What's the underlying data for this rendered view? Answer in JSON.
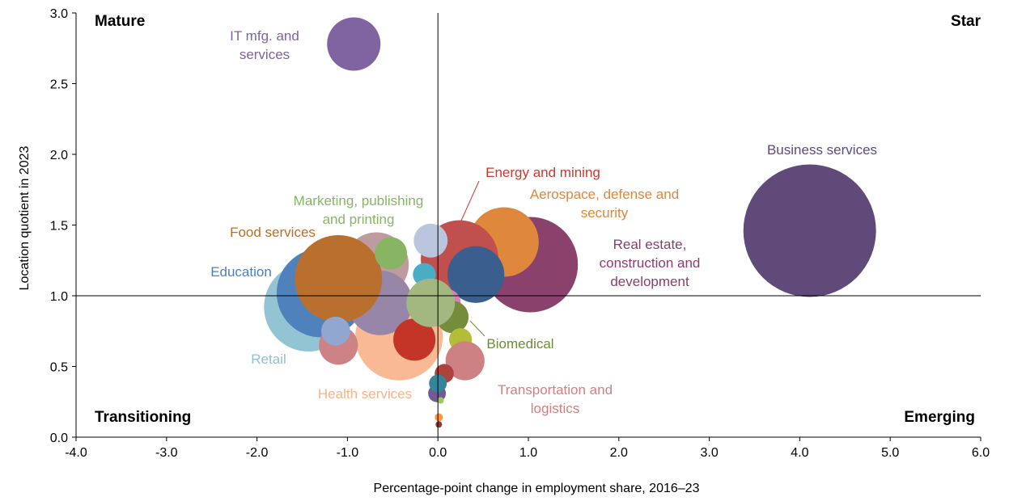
{
  "chart_data": {
    "type": "scatter",
    "subtype": "bubble",
    "xlabel": "Percentage-point change in employment share, 2016–23",
    "ylabel": "Location quotient in 2023",
    "xlim": [
      -4.0,
      6.0
    ],
    "ylim": [
      0.0,
      3.0
    ],
    "xticks": [
      "-4.0",
      "-3.0",
      "-2.0",
      "-1.0",
      "0.0",
      "1.0",
      "2.0",
      "3.0",
      "4.0",
      "5.0",
      "6.0"
    ],
    "yticks": [
      "0.0",
      "0.5",
      "1.0",
      "1.5",
      "2.0",
      "2.5",
      "3.0"
    ],
    "grid": false,
    "reference_lines": {
      "x": 0.0,
      "y": 1.0
    },
    "quadrants": {
      "top_left": "Mature",
      "top_right": "Star",
      "bottom_left": "Transitioning",
      "bottom_right": "Emerging"
    },
    "labels": {
      "it": [
        "IT mfg. and",
        "services"
      ],
      "business": [
        "Business services"
      ],
      "energy": [
        "Energy and mining"
      ],
      "aerospace": [
        "Aerospace, defense and",
        "security"
      ],
      "realestate": [
        "Real estate,",
        "construction and",
        "development"
      ],
      "marketing": [
        "Marketing, publishing",
        "and printing"
      ],
      "food": [
        "Food services"
      ],
      "education": [
        "Education"
      ],
      "retail": [
        "Retail"
      ],
      "health": [
        "Health services"
      ],
      "biomedical": [
        "Biomedical"
      ],
      "transport": [
        "Transportation and",
        "logistics"
      ]
    },
    "bubbles": [
      {
        "id": "business",
        "x": 4.11,
        "y": 1.46,
        "size": 67.2,
        "color": "#5f4a7a"
      },
      {
        "id": "realestate",
        "x": 1.02,
        "y": 1.22,
        "size": 34.8,
        "color": "#8a416c"
      },
      {
        "id": "aerospace",
        "x": 0.73,
        "y": 1.38,
        "size": 18.5,
        "color": "#df873a"
      },
      {
        "id": "energy",
        "x": 0.24,
        "y": 1.26,
        "size": 23.0,
        "color": "#c0504d"
      },
      {
        "id": "retail",
        "x": -1.43,
        "y": 0.92,
        "size": 30.3,
        "color": "#93c4d4"
      },
      {
        "id": "education",
        "x": -1.29,
        "y": 1.02,
        "size": 30.3,
        "color": "#4f81bd"
      },
      {
        "id": "rosegray",
        "x": -0.68,
        "y": 1.22,
        "size": 16.0,
        "color": "#bd9b9f"
      },
      {
        "id": "health",
        "x": -0.43,
        "y": 0.71,
        "size": 29.2,
        "color": "#f8b994"
      },
      {
        "id": "lavender",
        "x": -0.64,
        "y": 0.95,
        "size": 16.0,
        "color": "#9886a8"
      },
      {
        "id": "food",
        "x": -1.1,
        "y": 1.12,
        "size": 29.2,
        "color": "#b9702f"
      },
      {
        "id": "marketing",
        "x": -0.52,
        "y": 1.3,
        "size": 4.0,
        "color": "#87b563"
      },
      {
        "id": "coral",
        "x": -1.1,
        "y": 0.65,
        "size": 5.8,
        "color": "#cd8285"
      },
      {
        "id": "periwinkle",
        "x": -1.13,
        "y": 0.75,
        "size": 3.2,
        "color": "#92a7cf"
      },
      {
        "id": "red",
        "x": -0.26,
        "y": 0.69,
        "size": 6.8,
        "color": "#c33527"
      },
      {
        "id": "grayblue",
        "x": -0.08,
        "y": 1.39,
        "size": 4.4,
        "color": "#bac6de"
      },
      {
        "id": "darkblue",
        "x": 0.42,
        "y": 1.15,
        "size": 12.3,
        "color": "#3a5f8e"
      },
      {
        "id": "cyan",
        "x": -0.15,
        "y": 1.15,
        "size": 2.0,
        "color": "#4bacc6"
      },
      {
        "id": "pink",
        "x": 0.1,
        "y": 0.95,
        "size": 2.9,
        "color": "#d77fb8"
      },
      {
        "id": "biomedical",
        "x": 0.16,
        "y": 0.85,
        "size": 4.0,
        "color": "#748c3c"
      },
      {
        "id": "palegreen",
        "x": -0.08,
        "y": 0.95,
        "size": 9.0,
        "color": "#a3b880"
      },
      {
        "id": "yellowgreen",
        "x": 0.25,
        "y": 0.69,
        "size": 2.0,
        "color": "#b3bd35"
      },
      {
        "id": "transport",
        "x": 0.3,
        "y": 0.54,
        "size": 5.8,
        "color": "#cd8183"
      },
      {
        "id": "darkred",
        "x": 0.07,
        "y": 0.45,
        "size": 1.4,
        "color": "#b0423e"
      },
      {
        "id": "purple",
        "x": -0.01,
        "y": 0.31,
        "size": 1.2,
        "color": "#735a95"
      },
      {
        "id": "teal",
        "x": 0.0,
        "y": 0.38,
        "size": 1.2,
        "color": "#35849a"
      },
      {
        "id": "tinygreen",
        "x": 0.03,
        "y": 0.26,
        "size": 0.16,
        "color": "#9bcb5c"
      },
      {
        "id": "tinyorange",
        "x": 0.01,
        "y": 0.14,
        "size": 0.25,
        "color": "#f79646"
      },
      {
        "id": "tinybrown",
        "x": 0.01,
        "y": 0.09,
        "size": 0.16,
        "color": "#8b3a32"
      },
      {
        "id": "it",
        "x": -0.93,
        "y": 2.78,
        "size": 10.9,
        "color": "#8064a2"
      }
    ],
    "label_colors": {
      "it": "#7f63a0",
      "business": "#5e4a7a",
      "energy": "#c8392f",
      "aerospace": "#e0873a",
      "realestate": "#8a3f6b",
      "marketing": "#87b466",
      "food": "#b96e2d",
      "education": "#4a7fc0",
      "retail": "#8fc0d4",
      "health": "#f5b48a",
      "biomedical": "#6f8a3a",
      "transport": "#d47e80"
    }
  }
}
